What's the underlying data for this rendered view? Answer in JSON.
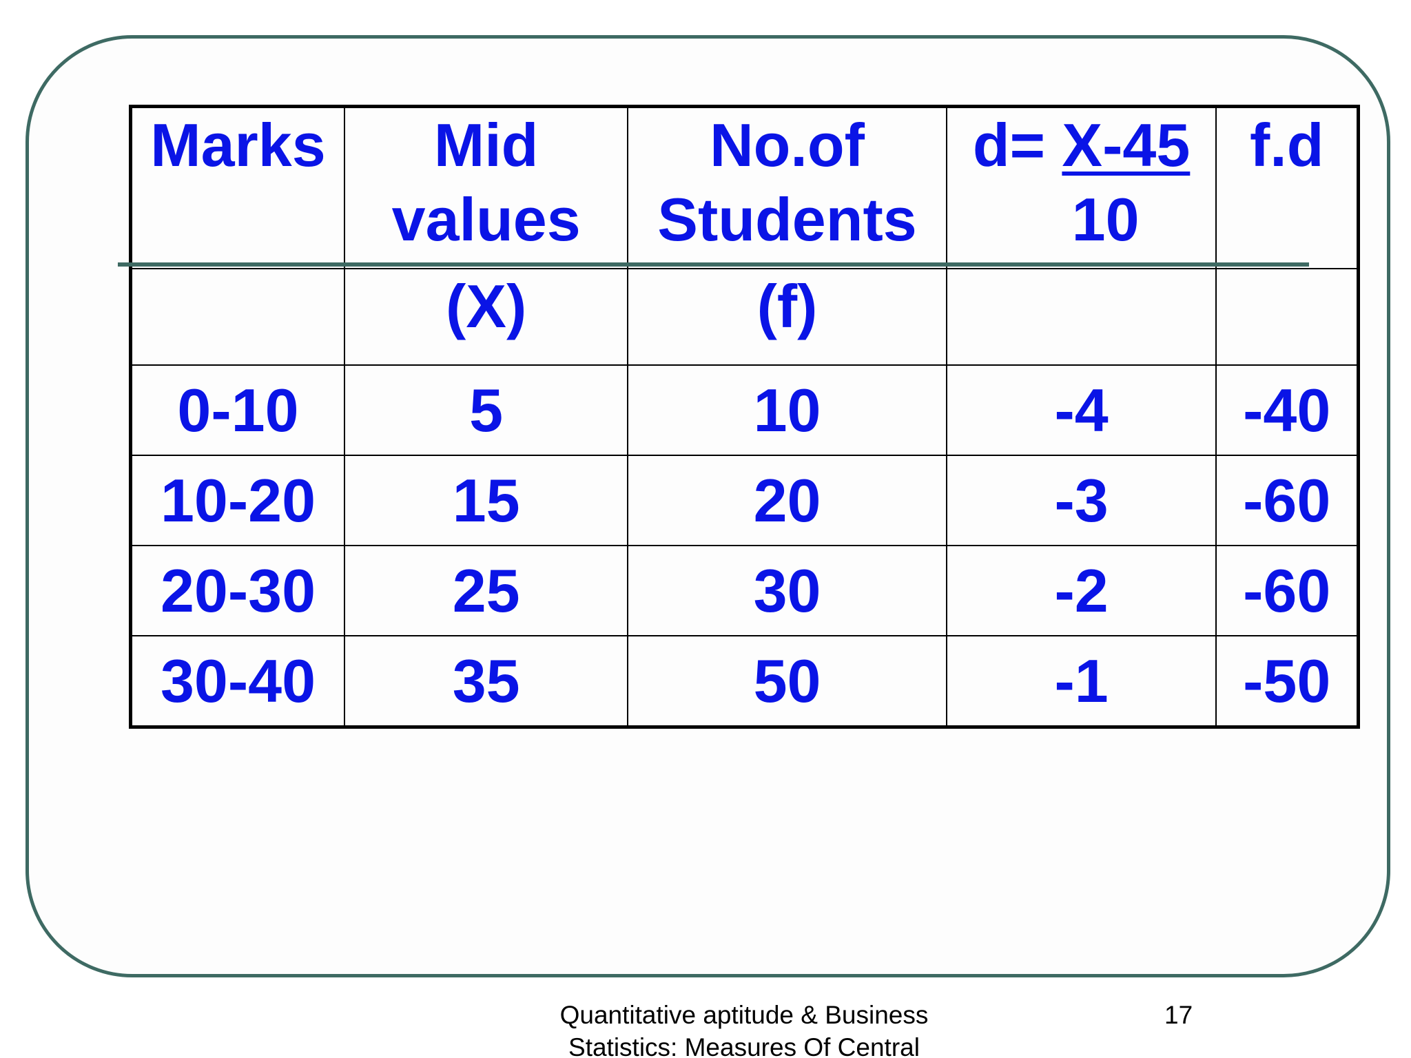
{
  "table": {
    "headers": {
      "marks": "Marks",
      "mid_line1": "Mid",
      "mid_line2": "values",
      "mid_sub": "(X)",
      "nof_line1": "No.of",
      "nof_line2": "Students",
      "nof_sub": "(f)",
      "d_prefix": "d= ",
      "d_numerator": "X-45",
      "d_denominator": "10",
      "fd": "f.d"
    },
    "rows": [
      {
        "marks": "0-10",
        "mid": "5",
        "f": "10",
        "d": "-4",
        "fd": "-40"
      },
      {
        "marks": "10-20",
        "mid": "15",
        "f": "20",
        "d": "-3",
        "fd": "-60"
      },
      {
        "marks": "20-30",
        "mid": "25",
        "f": "30",
        "d": "-2",
        "fd": "-60"
      },
      {
        "marks": "30-40",
        "mid": "35",
        "f": "50",
        "d": "-1",
        "fd": "-50"
      }
    ]
  },
  "footer": {
    "line1": "Quantitative aptitude & Business",
    "line2": "Statistics: Measures Of Central",
    "page_number": "17"
  },
  "colors": {
    "text_blue": "#0a14e6",
    "frame_green": "#3e6a63"
  }
}
